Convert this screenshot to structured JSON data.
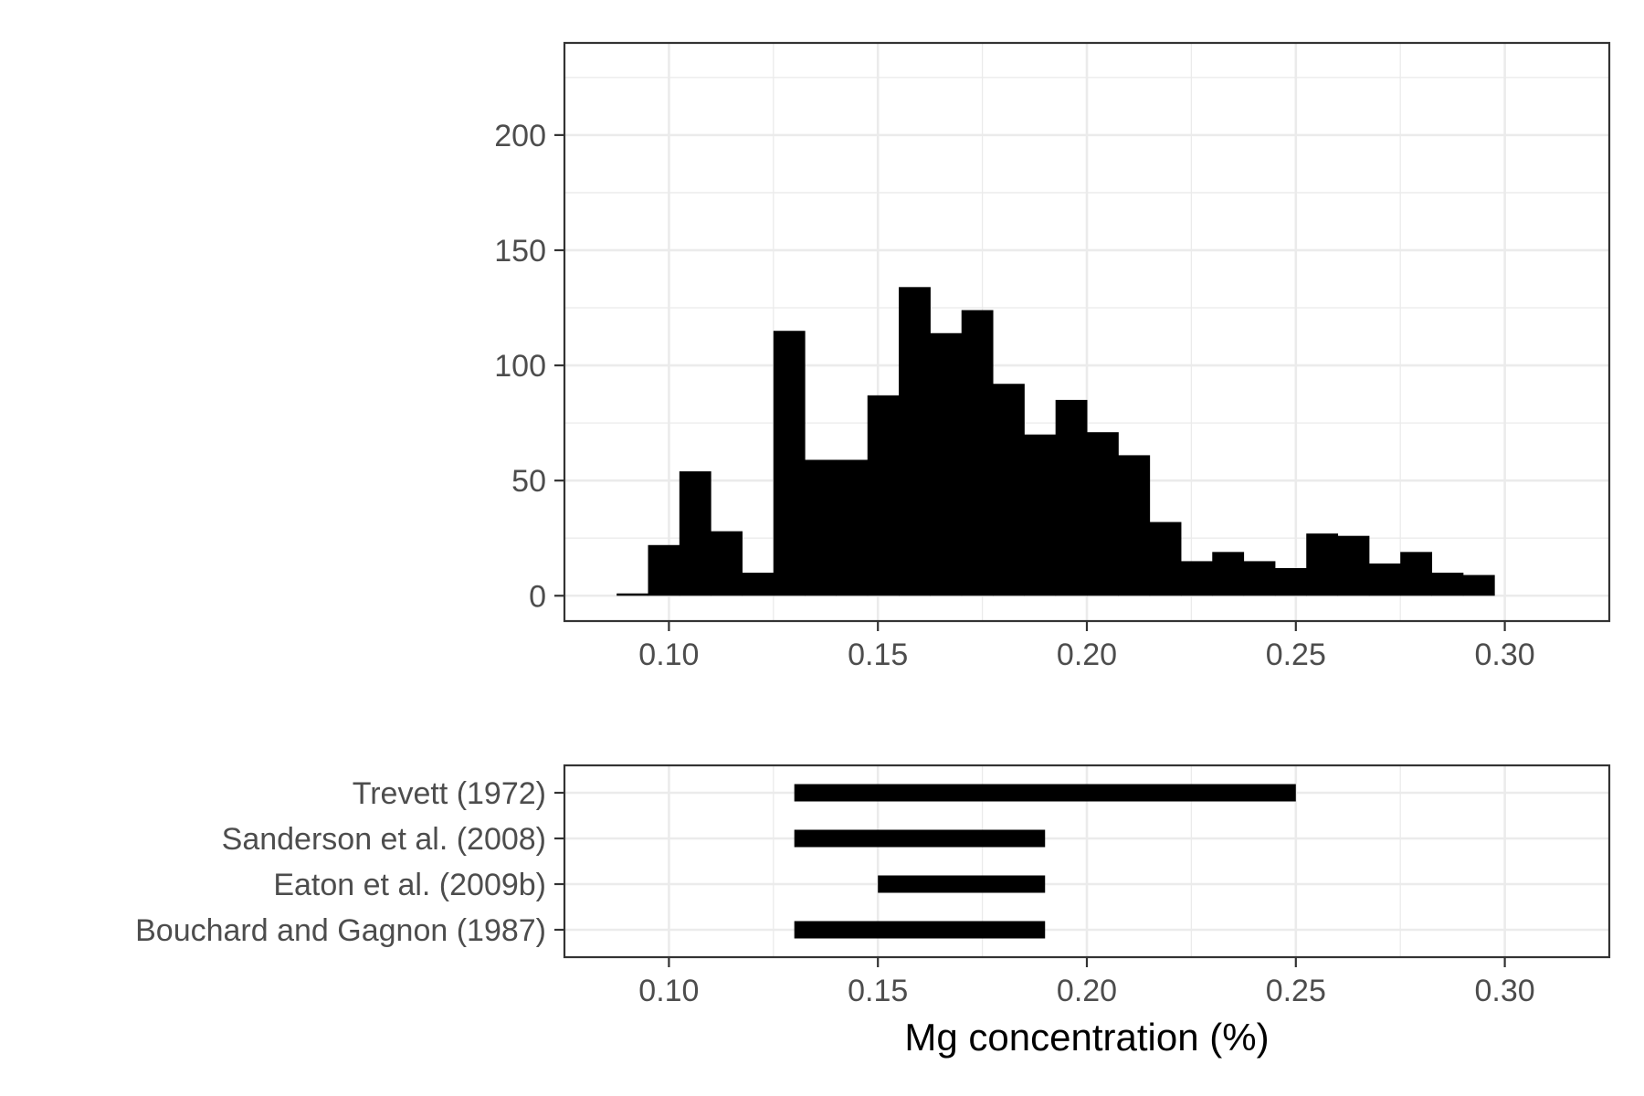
{
  "chart_data": [
    {
      "type": "bar",
      "subtype": "histogram",
      "xlim": [
        0.075,
        0.325
      ],
      "ylim": [
        -11,
        240
      ],
      "x_ticks": [
        0.1,
        0.15,
        0.2,
        0.25,
        0.3
      ],
      "x_tick_labels": [
        "0.10",
        "0.15",
        "0.20",
        "0.25",
        "0.30"
      ],
      "y_ticks": [
        0,
        50,
        100,
        150,
        200
      ],
      "y_tick_labels": [
        "0",
        "50",
        "100",
        "150",
        "200"
      ],
      "bin_width": 0.0075,
      "bins_start": [
        0.0875,
        0.095,
        0.1025,
        0.11,
        0.1175,
        0.125,
        0.1325,
        0.14,
        0.1475,
        0.155,
        0.1625,
        0.17,
        0.1775,
        0.185,
        0.1925,
        0.2,
        0.2075,
        0.215,
        0.2225,
        0.23,
        0.2375,
        0.245,
        0.2525,
        0.26,
        0.2675,
        0.275,
        0.2825,
        0.29
      ],
      "counts": [
        1,
        22,
        54,
        28,
        10,
        115,
        59,
        59,
        87,
        134,
        114,
        124,
        92,
        70,
        85,
        71,
        61,
        32,
        15,
        19,
        15,
        12,
        27,
        26,
        14,
        19,
        10,
        9
      ],
      "grid": true,
      "fill_color": "#000000"
    },
    {
      "type": "bar",
      "subtype": "range",
      "orientation": "horizontal",
      "xlim": [
        0.075,
        0.325
      ],
      "x_ticks": [
        0.1,
        0.15,
        0.2,
        0.25,
        0.3
      ],
      "x_tick_labels": [
        "0.10",
        "0.15",
        "0.20",
        "0.25",
        "0.30"
      ],
      "xlabel": "Mg concentration (%)",
      "categories": [
        "Trevett (1972)",
        "Sanderson et al. (2008)",
        "Eaton et al. (2009b)",
        "Bouchard and Gagnon (1987)"
      ],
      "ranges": [
        [
          0.13,
          0.25
        ],
        [
          0.13,
          0.19
        ],
        [
          0.15,
          0.19
        ],
        [
          0.13,
          0.19
        ]
      ],
      "grid": true,
      "bar_color": "#000000"
    }
  ]
}
